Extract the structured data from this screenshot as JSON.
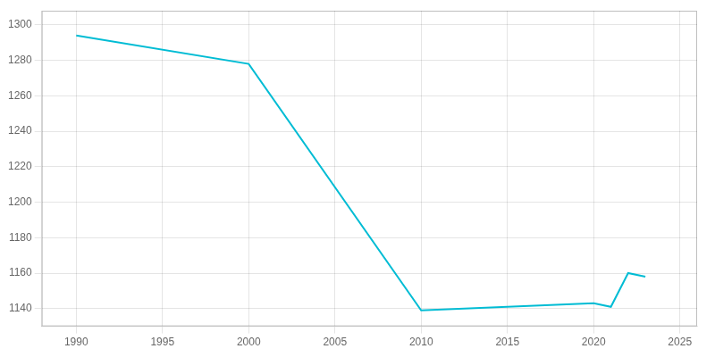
{
  "chart_data": {
    "type": "line",
    "x": [
      1990,
      2000,
      2010,
      2020,
      2021,
      2022,
      2023
    ],
    "values": [
      1294,
      1278,
      1139,
      1143,
      1141,
      1160,
      1158
    ],
    "color": "#00BCD4",
    "xlim": [
      1988,
      2026
    ],
    "ylim": [
      1130,
      1308
    ],
    "xticks": [
      1990,
      1995,
      2000,
      2005,
      2010,
      2015,
      2020,
      2025
    ],
    "yticks": [
      1140,
      1160,
      1180,
      1200,
      1220,
      1240,
      1260,
      1280,
      1300
    ],
    "grid": true
  }
}
